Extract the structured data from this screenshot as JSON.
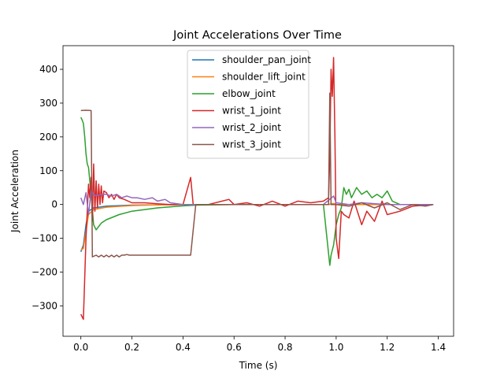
{
  "chart_data": {
    "type": "line",
    "title": "Joint Accelerations Over Time",
    "xlabel": "Time (s)",
    "ylabel": "Joint Acceleration",
    "xlim": [
      -0.07,
      1.46
    ],
    "ylim": [
      -390,
      470
    ],
    "xticks": [
      0.0,
      0.2,
      0.4,
      0.6,
      0.8,
      1.0,
      1.2,
      1.4
    ],
    "xtick_labels": [
      "0.0",
      "0.2",
      "0.4",
      "0.6",
      "0.8",
      "1.0",
      "1.2",
      "1.4"
    ],
    "yticks": [
      -300,
      -200,
      -100,
      0,
      100,
      200,
      300,
      400
    ],
    "ytick_labels": [
      "−300",
      "−200",
      "−100",
      "0",
      "100",
      "200",
      "300",
      "400"
    ],
    "grid": false,
    "legend_position": "top-center",
    "series": [
      {
        "name": "shoulder_pan_joint",
        "color": "#1f77b4",
        "x": [
          0.0,
          0.01,
          0.02,
          0.03,
          0.05,
          0.1,
          0.2,
          0.3,
          0.4,
          0.6,
          0.8,
          0.97,
          0.99,
          1.0,
          1.1,
          1.2,
          1.3,
          1.38
        ],
        "y": [
          -140,
          -120,
          -60,
          -20,
          -10,
          -5,
          -2,
          -1,
          0,
          0,
          0,
          0,
          2,
          0,
          0,
          0,
          0,
          0
        ]
      },
      {
        "name": "shoulder_lift_joint",
        "color": "#ff7f0e",
        "x": [
          0.0,
          0.01,
          0.02,
          0.03,
          0.05,
          0.1,
          0.2,
          0.3,
          0.4,
          0.6,
          0.8,
          0.97,
          0.99,
          1.0,
          1.1,
          1.2,
          1.3,
          1.38
        ],
        "y": [
          -135,
          -130,
          -80,
          -30,
          -15,
          -8,
          -3,
          -1,
          0,
          0,
          0,
          0,
          3,
          0,
          0,
          0,
          0,
          0
        ]
      },
      {
        "name": "elbow_joint",
        "color": "#2ca02c",
        "x": [
          0.0,
          0.005,
          0.01,
          0.015,
          0.02,
          0.025,
          0.03,
          0.04,
          0.05,
          0.06,
          0.08,
          0.1,
          0.15,
          0.2,
          0.3,
          0.4,
          0.45,
          0.6,
          0.8,
          0.95,
          0.975,
          0.98,
          0.99,
          1.0,
          1.01,
          1.02,
          1.03,
          1.04,
          1.05,
          1.06,
          1.08,
          1.1,
          1.12,
          1.14,
          1.16,
          1.18,
          1.2,
          1.22,
          1.25,
          1.3,
          1.38
        ],
        "y": [
          258,
          250,
          240,
          200,
          150,
          120,
          110,
          30,
          -60,
          -75,
          -55,
          -45,
          -30,
          -20,
          -10,
          -4,
          -2,
          0,
          0,
          0,
          -180,
          -150,
          -120,
          -60,
          -30,
          -10,
          50,
          30,
          45,
          20,
          50,
          30,
          40,
          20,
          30,
          20,
          40,
          10,
          0,
          0,
          0
        ]
      },
      {
        "name": "wrist_1_joint",
        "color": "#d62728",
        "x": [
          0.0,
          0.01,
          0.02,
          0.03,
          0.035,
          0.04,
          0.045,
          0.05,
          0.055,
          0.06,
          0.065,
          0.07,
          0.075,
          0.08,
          0.085,
          0.09,
          0.1,
          0.11,
          0.12,
          0.13,
          0.14,
          0.15,
          0.17,
          0.2,
          0.25,
          0.3,
          0.35,
          0.4,
          0.43,
          0.44,
          0.5,
          0.58,
          0.6,
          0.65,
          0.7,
          0.75,
          0.8,
          0.85,
          0.9,
          0.95,
          0.97,
          0.975,
          0.98,
          0.985,
          0.99,
          0.995,
          1.0,
          1.01,
          1.02,
          1.03,
          1.05,
          1.07,
          1.1,
          1.12,
          1.15,
          1.18,
          1.2,
          1.25,
          1.3,
          1.38
        ],
        "y": [
          -325,
          -340,
          -100,
          60,
          20,
          80,
          -50,
          120,
          -20,
          70,
          -10,
          60,
          0,
          55,
          5,
          40,
          35,
          20,
          30,
          15,
          30,
          20,
          15,
          5,
          5,
          2,
          0,
          0,
          80,
          0,
          0,
          15,
          0,
          5,
          -5,
          10,
          -5,
          10,
          5,
          10,
          20,
          140,
          400,
          320,
          435,
          200,
          -100,
          -160,
          -20,
          -30,
          -40,
          10,
          -60,
          -20,
          -50,
          10,
          -30,
          -20,
          -5,
          0
        ]
      },
      {
        "name": "wrist_2_joint",
        "color": "#9467bd",
        "x": [
          0.0,
          0.01,
          0.02,
          0.03,
          0.04,
          0.05,
          0.06,
          0.08,
          0.1,
          0.12,
          0.14,
          0.16,
          0.18,
          0.2,
          0.22,
          0.25,
          0.28,
          0.3,
          0.33,
          0.35,
          0.4,
          0.45,
          0.5,
          0.6,
          0.8,
          0.95,
          0.99,
          1.0,
          1.05,
          1.1,
          1.2,
          1.3,
          1.38
        ],
        "y": [
          20,
          0,
          35,
          -30,
          40,
          30,
          25,
          30,
          30,
          25,
          30,
          20,
          25,
          20,
          20,
          15,
          20,
          10,
          15,
          5,
          0,
          0,
          0,
          0,
          0,
          0,
          25,
          5,
          0,
          5,
          0,
          0,
          0
        ]
      },
      {
        "name": "wrist_3_joint",
        "color": "#8c564b",
        "x": [
          0.0,
          0.02,
          0.04,
          0.045,
          0.06,
          0.07,
          0.08,
          0.09,
          0.1,
          0.11,
          0.12,
          0.13,
          0.14,
          0.15,
          0.16,
          0.17,
          0.18,
          0.19,
          0.2,
          0.22,
          0.24,
          0.26,
          0.28,
          0.3,
          0.33,
          0.36,
          0.4,
          0.43,
          0.45,
          0.6,
          0.8,
          0.97,
          0.975,
          0.98,
          1.0,
          1.05,
          1.1,
          1.15,
          1.2,
          1.25,
          1.3,
          1.35,
          1.38
        ],
        "y": [
          278,
          279,
          278,
          -155,
          -150,
          -155,
          -150,
          -155,
          -150,
          -155,
          -150,
          -155,
          -150,
          -155,
          -150,
          -150,
          -148,
          -150,
          -150,
          -150,
          -150,
          -150,
          -150,
          -150,
          -150,
          -150,
          -150,
          -150,
          0,
          0,
          0,
          0,
          330,
          0,
          0,
          -5,
          5,
          -10,
          5,
          -15,
          0,
          -5,
          0
        ]
      }
    ]
  }
}
